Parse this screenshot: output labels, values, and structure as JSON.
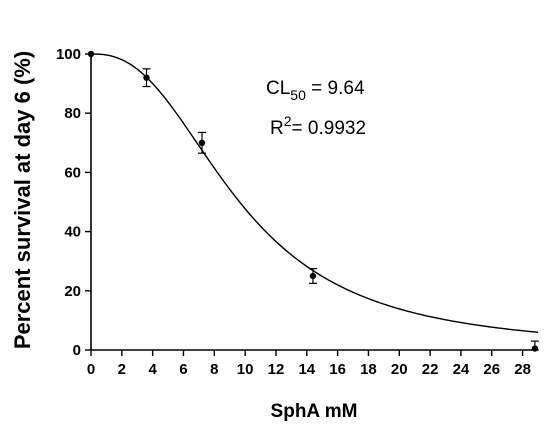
{
  "chart_data": {
    "type": "scatter",
    "title": "",
    "xlabel": "SphA mM",
    "ylabel": "Percent survival at day 6 (%)",
    "xlim": [
      0,
      29
    ],
    "ylim": [
      0,
      100
    ],
    "xticks": [
      0,
      2,
      4,
      6,
      8,
      10,
      12,
      14,
      16,
      18,
      20,
      22,
      24,
      26,
      28
    ],
    "yticks": [
      0,
      20,
      40,
      60,
      80,
      100
    ],
    "grid": false,
    "legend": "none",
    "series": [
      {
        "x": [
          0,
          3.6,
          7.2,
          14.4,
          28.8
        ],
        "y": [
          100,
          92,
          70,
          25,
          0.5
        ],
        "error": [
          0,
          3,
          3.5,
          2.5,
          2.5
        ]
      }
    ],
    "fit_curve": {
      "type": "logistic",
      "cl50": 9.64,
      "hill_slope": 2.5
    },
    "annotations": {
      "cl50_prefix": "CL",
      "cl50_subscript": "50",
      "cl50_suffix": " = 9.64",
      "r2_prefix": "R",
      "r2_superscript": "2",
      "r2_suffix": "= 0.9932"
    },
    "colors": {
      "marks": "#000000"
    }
  }
}
